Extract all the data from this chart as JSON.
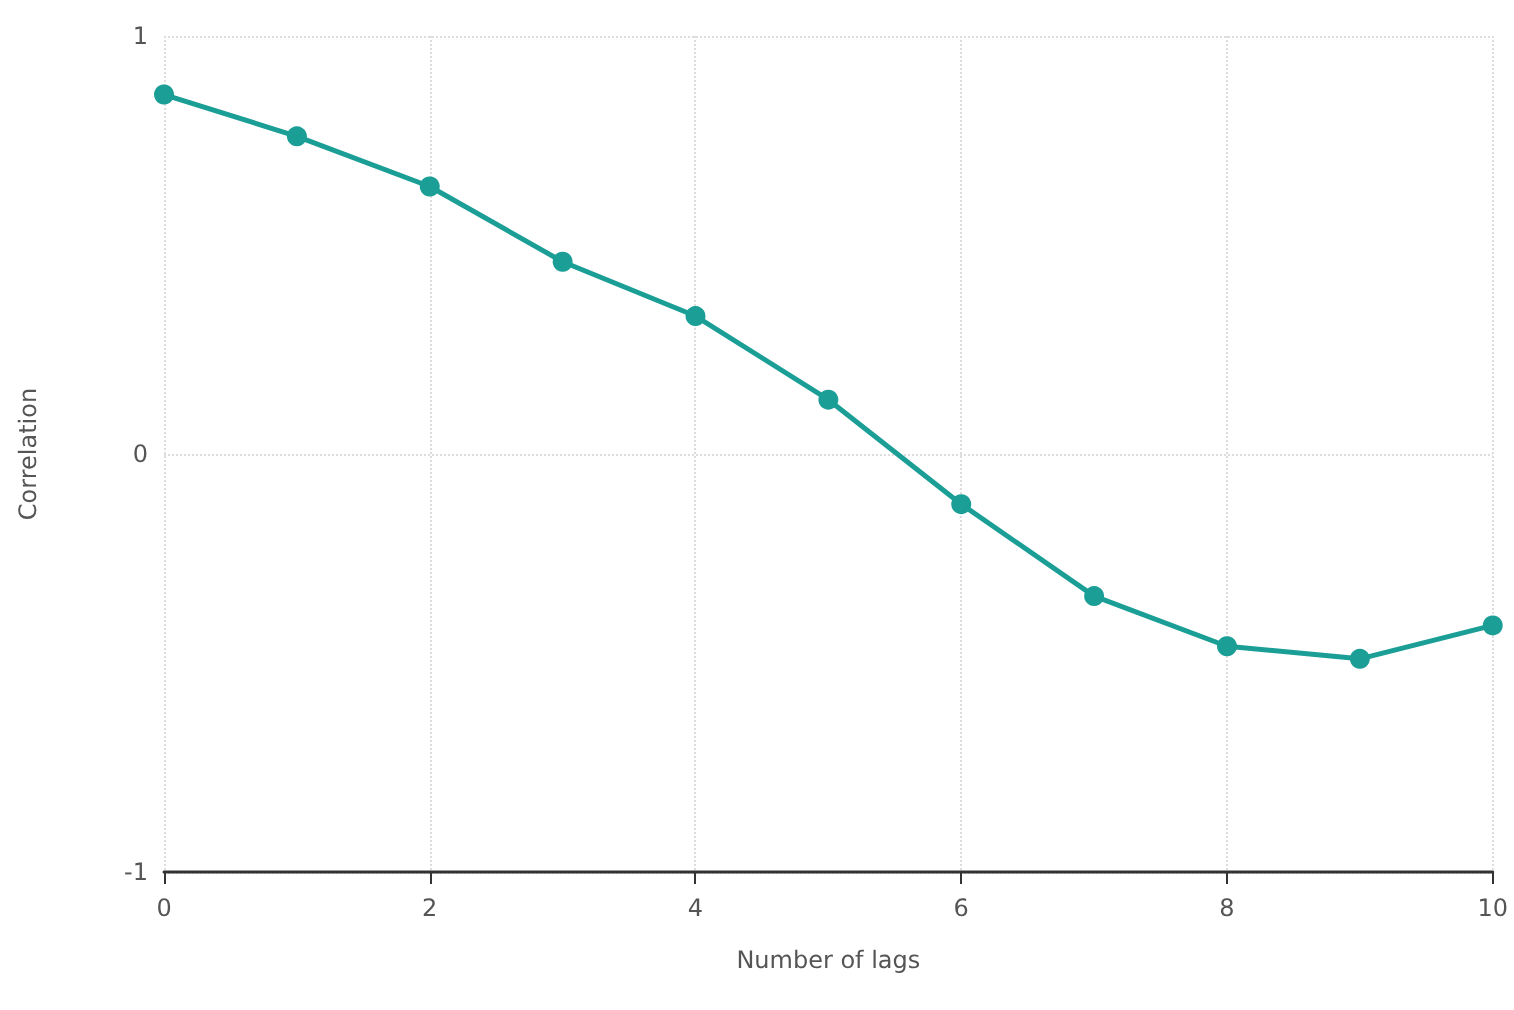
{
  "chart_data": {
    "type": "line",
    "xlabel": "Number of lags",
    "ylabel": "Correlation",
    "x": [
      0,
      1,
      2,
      3,
      4,
      5,
      6,
      7,
      8,
      9,
      10
    ],
    "series": [
      {
        "color": "#1a9e96",
        "values": [
          0.86,
          0.76,
          0.64,
          0.46,
          0.33,
          0.13,
          -0.12,
          -0.34,
          -0.46,
          -0.49,
          -0.41
        ]
      }
    ],
    "xlim": [
      0,
      10
    ],
    "xticks": [
      0,
      2,
      4,
      6,
      8,
      10
    ],
    "ylim": [
      -1,
      1
    ],
    "yticks": [
      -1,
      0,
      1
    ],
    "grid": true,
    "marker": "circle",
    "line_style": "solid"
  }
}
